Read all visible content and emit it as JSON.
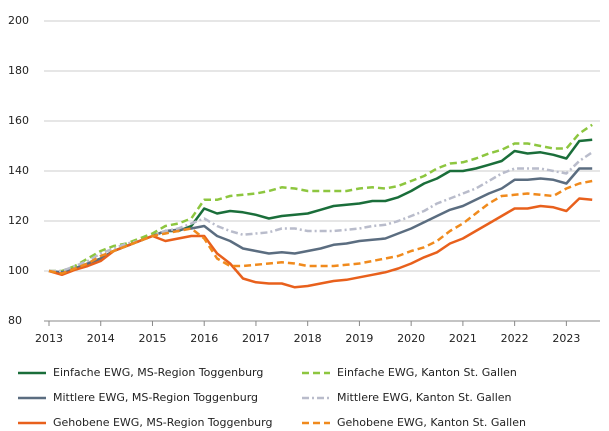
{
  "chart_data": {
    "type": "line",
    "x": [
      2013,
      2013.25,
      2013.5,
      2013.75,
      2014,
      2014.25,
      2014.5,
      2014.75,
      2015,
      2015.25,
      2015.5,
      2015.75,
      2016,
      2016.25,
      2016.5,
      2016.75,
      2017,
      2017.25,
      2017.5,
      2017.75,
      2018,
      2018.25,
      2018.5,
      2018.75,
      2019,
      2019.25,
      2019.5,
      2019.75,
      2020,
      2020.25,
      2020.5,
      2020.75,
      2021,
      2021.25,
      2021.5,
      2021.75,
      2022,
      2022.25,
      2022.5,
      2022.75,
      2023,
      2023.25,
      2023.5
    ],
    "xlim": [
      2013,
      2023.65
    ],
    "xticks": [
      2013,
      2014,
      2015,
      2016,
      2017,
      2018,
      2019,
      2020,
      2021,
      2022,
      2023
    ],
    "ylim": [
      80,
      200
    ],
    "yticks": [
      80,
      100,
      120,
      140,
      160,
      180,
      200
    ],
    "grid": true,
    "series": [
      {
        "name": "Einfache EWG, MS-Region Toggenburg",
        "color": "#1a6e3a",
        "line_style": "solid",
        "values": [
          100,
          99,
          101,
          103,
          105,
          108,
          110,
          112,
          114,
          116,
          116,
          118,
          125,
          123,
          124,
          123.5,
          122.5,
          121,
          122,
          122.5,
          123,
          124.5,
          126,
          126.5,
          127,
          128,
          128,
          129.5,
          132,
          135,
          137,
          140,
          140,
          141,
          142.5,
          144,
          148,
          147,
          147.5,
          146.5,
          145,
          152,
          152.5
        ]
      },
      {
        "name": "Einfache EWG, Kanton St. Gallen",
        "color": "#8dc63f",
        "line_style": "dashed",
        "values": [
          100,
          100,
          102,
          105,
          108,
          110,
          111,
          113,
          115,
          118,
          119,
          121,
          128.5,
          128.5,
          130,
          130.5,
          131,
          132,
          133.5,
          133,
          132,
          132,
          132,
          132,
          133,
          133.5,
          133,
          134,
          136,
          138,
          141,
          143,
          143.5,
          145,
          147,
          148.5,
          151,
          151,
          150,
          149,
          149,
          155,
          158.5
        ]
      },
      {
        "name": "Mittlere EWG, MS-Region Toggenburg",
        "color": "#5b6d80",
        "line_style": "solid",
        "values": [
          100,
          99.5,
          101,
          103,
          105,
          108,
          110,
          112,
          114,
          116,
          116.5,
          117,
          118,
          114,
          112,
          109,
          108,
          107,
          107.5,
          107,
          108,
          109,
          110.5,
          111,
          112,
          112.5,
          113,
          115,
          117,
          119.5,
          122,
          124.5,
          126,
          128.5,
          131,
          133,
          136.5,
          136.5,
          137,
          136.5,
          135,
          141,
          141
        ]
      },
      {
        "name": "Mittlere EWG, Kanton St. Gallen",
        "color": "#b9bccb",
        "line_style": "dashdot",
        "values": [
          100,
          100,
          102,
          104,
          107,
          109,
          111,
          112,
          114,
          116,
          117,
          119,
          121,
          118,
          116,
          114.5,
          115,
          115.5,
          117,
          117,
          116,
          116,
          116,
          116.5,
          117,
          118,
          118.5,
          120,
          122,
          124,
          127,
          129,
          131,
          133,
          136,
          139,
          141,
          141,
          141,
          140,
          139,
          144,
          147.5
        ]
      },
      {
        "name": "Gehobene EWG, MS-Region Toggenburg",
        "color": "#e8601c",
        "line_style": "solid",
        "values": [
          100,
          98.5,
          100.5,
          102,
          104,
          108,
          110,
          112,
          114,
          112,
          113,
          114,
          114,
          107,
          103,
          97,
          95.5,
          95,
          95,
          93.5,
          94,
          95,
          96,
          96.5,
          97.5,
          98.5,
          99.5,
          101,
          103,
          105.5,
          107.5,
          111,
          113,
          116,
          119,
          122,
          125,
          125,
          126,
          125.5,
          124,
          129,
          128.5
        ]
      },
      {
        "name": "Gehobene EWG, Kanton St. Gallen",
        "color": "#f08a1d",
        "line_style": "dashed",
        "values": [
          100,
          99,
          101,
          103,
          106,
          108,
          110,
          112,
          114,
          115,
          116,
          117,
          113,
          105,
          102,
          102,
          102.5,
          103,
          103.5,
          103,
          102,
          102,
          102,
          102.5,
          103,
          104,
          105,
          106,
          108,
          109.5,
          112,
          116,
          119,
          123,
          127,
          130,
          130.5,
          131,
          130.5,
          130,
          133,
          135,
          136
        ]
      }
    ]
  }
}
